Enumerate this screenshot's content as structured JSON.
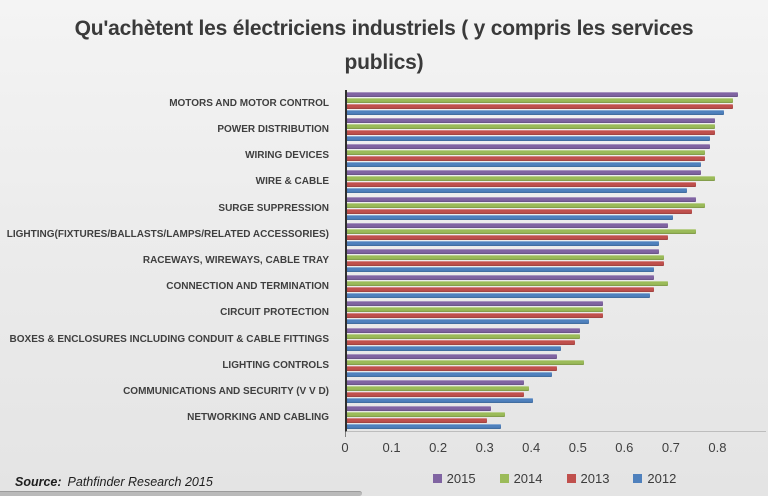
{
  "title": "Qu'achètent les électriciens industriels ( y compris les services publics)",
  "source": {
    "label": "Source:",
    "text": "Pathfinder Research 2015"
  },
  "colors": {
    "series_2015": "#8064A2",
    "series_2014": "#9BBB59",
    "series_2013": "#C0504D",
    "series_2012": "#4F81BD",
    "axis_line": "#2e2e2e",
    "gridline": "#cccccc"
  },
  "chart_data": {
    "type": "bar",
    "orientation": "horizontal",
    "title": "Qu'achètent les électriciens industriels ( y compris les services publics)",
    "xlabel": "",
    "ylabel": "",
    "xlim": [
      0,
      0.9
    ],
    "xtick_labels": [
      "0",
      "0.1",
      "0.2",
      "0.3",
      "0.4",
      "0.5",
      "0.6",
      "0.7",
      "0.8"
    ],
    "grid": true,
    "legend_position": "bottom",
    "categories": [
      "MOTORS AND MOTOR CONTROL",
      "POWER DISTRIBUTION",
      "WIRING DEVICES",
      "WIRE & CABLE",
      "SURGE SUPPRESSION",
      "LIGHTING(FIXTURES/BALLASTS/LAMPS/RELATED ACCESSORIES)",
      "RACEWAYS, WIREWAYS, CABLE TRAY",
      "CONNECTION AND TERMINATION",
      "CIRCUIT PROTECTION",
      "BOXES & ENCLOSURES INCLUDING CONDUIT & CABLE FITTINGS",
      "LIGHTING CONTROLS",
      "COMMUNICATIONS AND SECURITY (V V D)",
      "NETWORKING AND CABLING"
    ],
    "series": [
      {
        "name": "2015",
        "color": "#8064A2",
        "values": [
          0.84,
          0.79,
          0.78,
          0.76,
          0.75,
          0.69,
          0.67,
          0.66,
          0.55,
          0.5,
          0.45,
          0.38,
          0.31
        ]
      },
      {
        "name": "2014",
        "color": "#9BBB59",
        "values": [
          0.83,
          0.79,
          0.77,
          0.79,
          0.77,
          0.75,
          0.68,
          0.69,
          0.55,
          0.5,
          0.51,
          0.39,
          0.34
        ]
      },
      {
        "name": "2013",
        "color": "#C0504D",
        "values": [
          0.83,
          0.79,
          0.77,
          0.75,
          0.74,
          0.69,
          0.68,
          0.66,
          0.55,
          0.49,
          0.45,
          0.38,
          0.3
        ]
      },
      {
        "name": "2012",
        "color": "#4F81BD",
        "values": [
          0.81,
          0.78,
          0.76,
          0.73,
          0.7,
          0.67,
          0.66,
          0.65,
          0.52,
          0.46,
          0.44,
          0.4,
          0.33
        ]
      }
    ]
  }
}
